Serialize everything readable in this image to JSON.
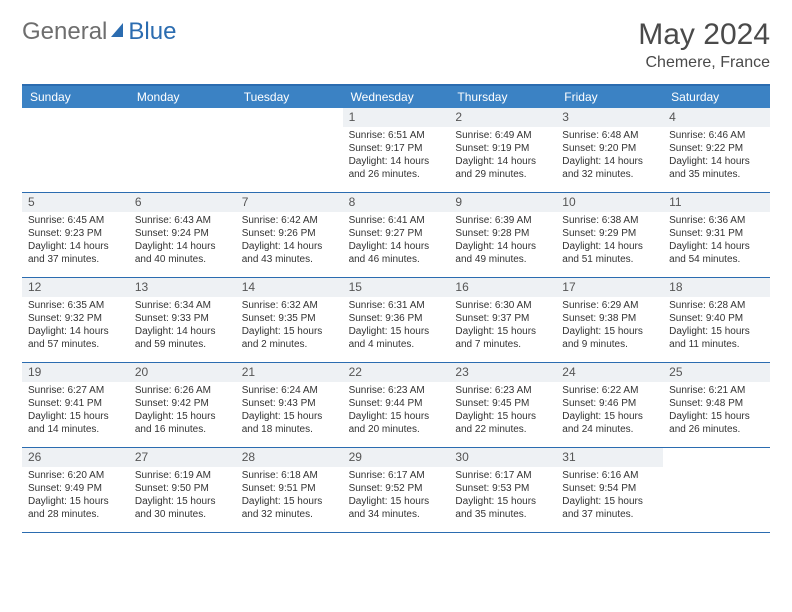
{
  "logo": {
    "part1": "General",
    "part2": "Blue"
  },
  "title": {
    "month": "May 2024",
    "location": "Chemere, France"
  },
  "colors": {
    "header_bg": "#3b82c4",
    "border": "#2b6cb0",
    "daynum_bg": "#eef1f4",
    "text": "#333333"
  },
  "day_names": [
    "Sunday",
    "Monday",
    "Tuesday",
    "Wednesday",
    "Thursday",
    "Friday",
    "Saturday"
  ],
  "weeks": [
    [
      {
        "n": "",
        "sr": "",
        "ss": "",
        "dl1": "",
        "dl2": ""
      },
      {
        "n": "",
        "sr": "",
        "ss": "",
        "dl1": "",
        "dl2": ""
      },
      {
        "n": "",
        "sr": "",
        "ss": "",
        "dl1": "",
        "dl2": ""
      },
      {
        "n": "1",
        "sr": "Sunrise: 6:51 AM",
        "ss": "Sunset: 9:17 PM",
        "dl1": "Daylight: 14 hours",
        "dl2": "and 26 minutes."
      },
      {
        "n": "2",
        "sr": "Sunrise: 6:49 AM",
        "ss": "Sunset: 9:19 PM",
        "dl1": "Daylight: 14 hours",
        "dl2": "and 29 minutes."
      },
      {
        "n": "3",
        "sr": "Sunrise: 6:48 AM",
        "ss": "Sunset: 9:20 PM",
        "dl1": "Daylight: 14 hours",
        "dl2": "and 32 minutes."
      },
      {
        "n": "4",
        "sr": "Sunrise: 6:46 AM",
        "ss": "Sunset: 9:22 PM",
        "dl1": "Daylight: 14 hours",
        "dl2": "and 35 minutes."
      }
    ],
    [
      {
        "n": "5",
        "sr": "Sunrise: 6:45 AM",
        "ss": "Sunset: 9:23 PM",
        "dl1": "Daylight: 14 hours",
        "dl2": "and 37 minutes."
      },
      {
        "n": "6",
        "sr": "Sunrise: 6:43 AM",
        "ss": "Sunset: 9:24 PM",
        "dl1": "Daylight: 14 hours",
        "dl2": "and 40 minutes."
      },
      {
        "n": "7",
        "sr": "Sunrise: 6:42 AM",
        "ss": "Sunset: 9:26 PM",
        "dl1": "Daylight: 14 hours",
        "dl2": "and 43 minutes."
      },
      {
        "n": "8",
        "sr": "Sunrise: 6:41 AM",
        "ss": "Sunset: 9:27 PM",
        "dl1": "Daylight: 14 hours",
        "dl2": "and 46 minutes."
      },
      {
        "n": "9",
        "sr": "Sunrise: 6:39 AM",
        "ss": "Sunset: 9:28 PM",
        "dl1": "Daylight: 14 hours",
        "dl2": "and 49 minutes."
      },
      {
        "n": "10",
        "sr": "Sunrise: 6:38 AM",
        "ss": "Sunset: 9:29 PM",
        "dl1": "Daylight: 14 hours",
        "dl2": "and 51 minutes."
      },
      {
        "n": "11",
        "sr": "Sunrise: 6:36 AM",
        "ss": "Sunset: 9:31 PM",
        "dl1": "Daylight: 14 hours",
        "dl2": "and 54 minutes."
      }
    ],
    [
      {
        "n": "12",
        "sr": "Sunrise: 6:35 AM",
        "ss": "Sunset: 9:32 PM",
        "dl1": "Daylight: 14 hours",
        "dl2": "and 57 minutes."
      },
      {
        "n": "13",
        "sr": "Sunrise: 6:34 AM",
        "ss": "Sunset: 9:33 PM",
        "dl1": "Daylight: 14 hours",
        "dl2": "and 59 minutes."
      },
      {
        "n": "14",
        "sr": "Sunrise: 6:32 AM",
        "ss": "Sunset: 9:35 PM",
        "dl1": "Daylight: 15 hours",
        "dl2": "and 2 minutes."
      },
      {
        "n": "15",
        "sr": "Sunrise: 6:31 AM",
        "ss": "Sunset: 9:36 PM",
        "dl1": "Daylight: 15 hours",
        "dl2": "and 4 minutes."
      },
      {
        "n": "16",
        "sr": "Sunrise: 6:30 AM",
        "ss": "Sunset: 9:37 PM",
        "dl1": "Daylight: 15 hours",
        "dl2": "and 7 minutes."
      },
      {
        "n": "17",
        "sr": "Sunrise: 6:29 AM",
        "ss": "Sunset: 9:38 PM",
        "dl1": "Daylight: 15 hours",
        "dl2": "and 9 minutes."
      },
      {
        "n": "18",
        "sr": "Sunrise: 6:28 AM",
        "ss": "Sunset: 9:40 PM",
        "dl1": "Daylight: 15 hours",
        "dl2": "and 11 minutes."
      }
    ],
    [
      {
        "n": "19",
        "sr": "Sunrise: 6:27 AM",
        "ss": "Sunset: 9:41 PM",
        "dl1": "Daylight: 15 hours",
        "dl2": "and 14 minutes."
      },
      {
        "n": "20",
        "sr": "Sunrise: 6:26 AM",
        "ss": "Sunset: 9:42 PM",
        "dl1": "Daylight: 15 hours",
        "dl2": "and 16 minutes."
      },
      {
        "n": "21",
        "sr": "Sunrise: 6:24 AM",
        "ss": "Sunset: 9:43 PM",
        "dl1": "Daylight: 15 hours",
        "dl2": "and 18 minutes."
      },
      {
        "n": "22",
        "sr": "Sunrise: 6:23 AM",
        "ss": "Sunset: 9:44 PM",
        "dl1": "Daylight: 15 hours",
        "dl2": "and 20 minutes."
      },
      {
        "n": "23",
        "sr": "Sunrise: 6:23 AM",
        "ss": "Sunset: 9:45 PM",
        "dl1": "Daylight: 15 hours",
        "dl2": "and 22 minutes."
      },
      {
        "n": "24",
        "sr": "Sunrise: 6:22 AM",
        "ss": "Sunset: 9:46 PM",
        "dl1": "Daylight: 15 hours",
        "dl2": "and 24 minutes."
      },
      {
        "n": "25",
        "sr": "Sunrise: 6:21 AM",
        "ss": "Sunset: 9:48 PM",
        "dl1": "Daylight: 15 hours",
        "dl2": "and 26 minutes."
      }
    ],
    [
      {
        "n": "26",
        "sr": "Sunrise: 6:20 AM",
        "ss": "Sunset: 9:49 PM",
        "dl1": "Daylight: 15 hours",
        "dl2": "and 28 minutes."
      },
      {
        "n": "27",
        "sr": "Sunrise: 6:19 AM",
        "ss": "Sunset: 9:50 PM",
        "dl1": "Daylight: 15 hours",
        "dl2": "and 30 minutes."
      },
      {
        "n": "28",
        "sr": "Sunrise: 6:18 AM",
        "ss": "Sunset: 9:51 PM",
        "dl1": "Daylight: 15 hours",
        "dl2": "and 32 minutes."
      },
      {
        "n": "29",
        "sr": "Sunrise: 6:17 AM",
        "ss": "Sunset: 9:52 PM",
        "dl1": "Daylight: 15 hours",
        "dl2": "and 34 minutes."
      },
      {
        "n": "30",
        "sr": "Sunrise: 6:17 AM",
        "ss": "Sunset: 9:53 PM",
        "dl1": "Daylight: 15 hours",
        "dl2": "and 35 minutes."
      },
      {
        "n": "31",
        "sr": "Sunrise: 6:16 AM",
        "ss": "Sunset: 9:54 PM",
        "dl1": "Daylight: 15 hours",
        "dl2": "and 37 minutes."
      },
      {
        "n": "",
        "sr": "",
        "ss": "",
        "dl1": "",
        "dl2": ""
      }
    ]
  ]
}
